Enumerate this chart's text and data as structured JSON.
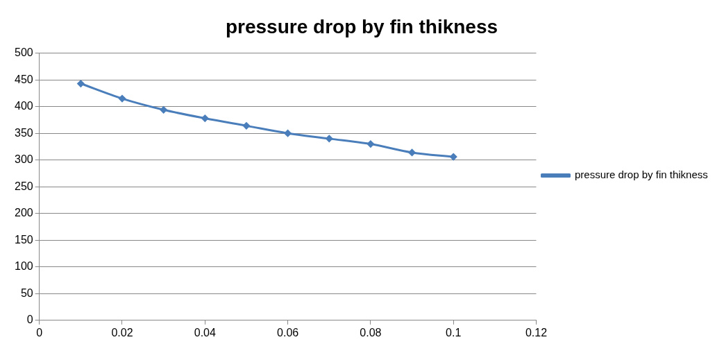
{
  "chart_data": {
    "type": "line",
    "title": "pressure drop by fin thikness",
    "x": [
      0.01,
      0.02,
      0.03,
      0.04,
      0.05,
      0.06,
      0.07,
      0.08,
      0.09,
      0.1
    ],
    "series": [
      {
        "name": "pressure drop by fin thikness",
        "color": "#4a7ebb",
        "values": [
          443,
          415,
          394,
          378,
          364,
          350,
          340,
          330,
          314,
          306
        ]
      }
    ],
    "xlim": [
      0,
      0.12
    ],
    "xticks": [
      0,
      0.02,
      0.04,
      0.06,
      0.08,
      0.1,
      0.12
    ],
    "ylim": [
      0,
      500
    ],
    "yticks": [
      0,
      50,
      100,
      150,
      200,
      250,
      300,
      350,
      400,
      450,
      500
    ],
    "grid": "y",
    "legend": "right",
    "marker": "diamond",
    "line_style": "solid"
  }
}
